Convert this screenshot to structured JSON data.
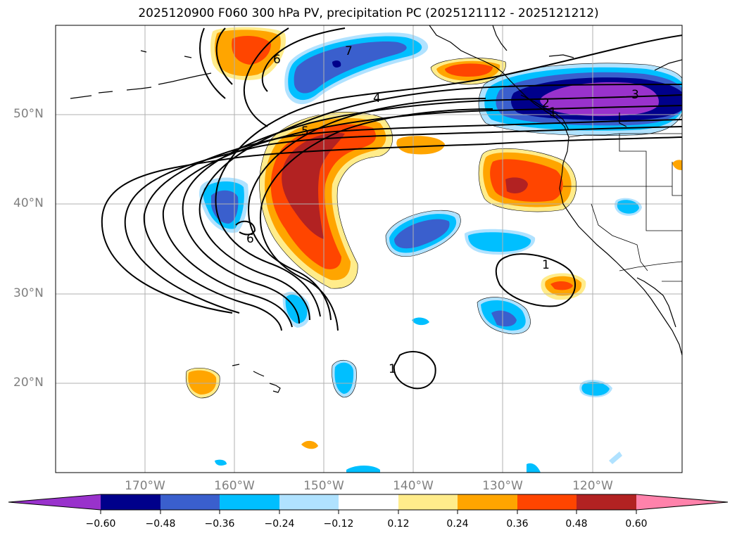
{
  "title": "2025120900 F060 300 hPa PV, precipitation PC (2025121112 - 2025121212)",
  "map": {
    "lat_labels": [
      "50°N",
      "40°N",
      "30°N",
      "20°N"
    ],
    "lon_labels": [
      "170°W",
      "160°W",
      "150°W",
      "140°W",
      "130°W",
      "120°W"
    ],
    "lon_range": [
      -180,
      -110
    ],
    "lat_range": [
      10,
      60
    ],
    "contour_labels": [
      "7",
      "6",
      "5",
      "4",
      "3",
      "2",
      "1",
      "6",
      "1",
      "1"
    ]
  },
  "colorbar": {
    "ticks": [
      "−0.60",
      "−0.48",
      "−0.36",
      "−0.24",
      "−0.12",
      "0.12",
      "0.24",
      "0.36",
      "0.48",
      "0.60"
    ],
    "colors": [
      "#9932cc",
      "#00008b",
      "#3a5fcd",
      "#00bfff",
      "#b0e2ff",
      "#ffffff",
      "#ffec8b",
      "#ffa500",
      "#ff4500",
      "#b22222",
      "#ff82ab"
    ]
  }
}
